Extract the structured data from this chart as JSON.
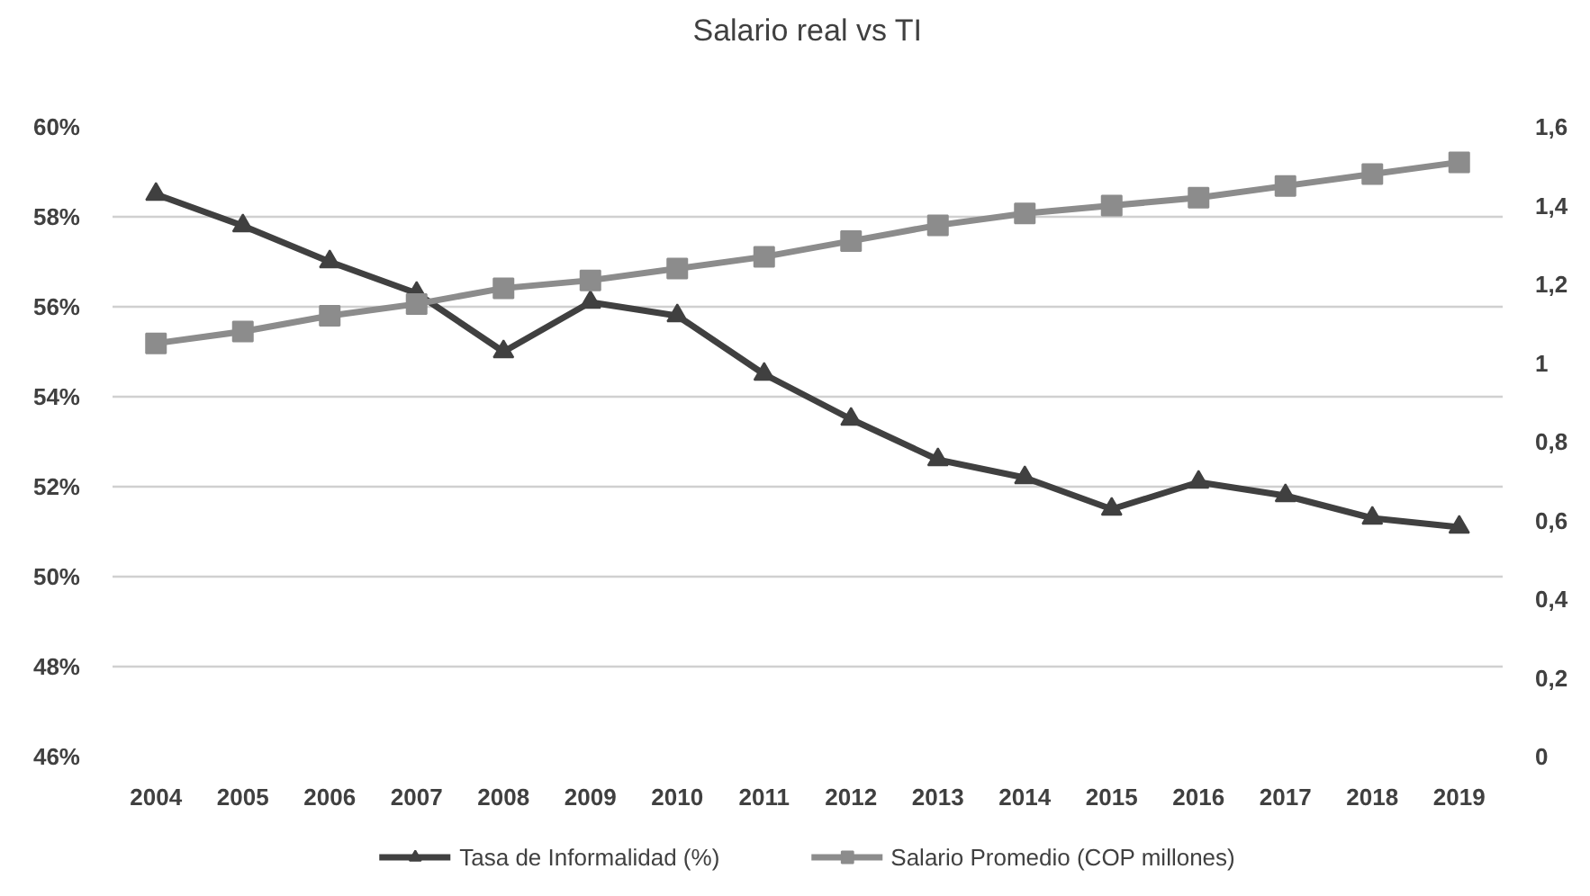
{
  "chart_data": {
    "type": "line",
    "title": "Salario real vs TI",
    "categories": [
      "2004",
      "2005",
      "2006",
      "2007",
      "2008",
      "2009",
      "2010",
      "2011",
      "2012",
      "2013",
      "2014",
      "2015",
      "2016",
      "2017",
      "2018",
      "2019"
    ],
    "series": [
      {
        "name": "Tasa de Informalidad (%)",
        "color": "#404040",
        "marker": "triangle",
        "values": [
          58.5,
          57.8,
          57.0,
          56.3,
          55.0,
          56.1,
          55.8,
          54.5,
          53.5,
          52.6,
          52.2,
          51.5,
          52.1,
          51.8,
          51.3,
          51.1
        ]
      },
      {
        "name": "Salario Promedio (COP millones)",
        "color": "#8c8c8c",
        "marker": "square",
        "axis": "y2",
        "values": [
          1.05,
          1.08,
          1.12,
          1.15,
          1.19,
          1.21,
          1.24,
          1.27,
          1.31,
          1.35,
          1.38,
          1.4,
          1.42,
          1.45,
          1.48,
          1.51
        ]
      }
    ],
    "ylim": [
      46,
      60
    ],
    "yticks": [
      {
        "value": 46,
        "label": "46%"
      },
      {
        "value": 48,
        "label": "48%"
      },
      {
        "value": 50,
        "label": "50%"
      },
      {
        "value": 52,
        "label": "52%"
      },
      {
        "value": 54,
        "label": "54%"
      },
      {
        "value": 56,
        "label": "56%"
      },
      {
        "value": 58,
        "label": "58%"
      },
      {
        "value": 60,
        "label": "60%"
      }
    ],
    "y2lim": [
      0,
      1.6
    ],
    "y2ticks": [
      0,
      {
        "value": 0.2,
        "label": "0,2"
      },
      {
        "value": 0.4,
        "label": "0,4"
      },
      {
        "value": 0.6,
        "label": "0,6"
      },
      {
        "value": 0.8,
        "label": "0,8"
      },
      1,
      {
        "value": 1.2,
        "label": "1,2"
      },
      {
        "value": 1.4,
        "label": "1,4"
      },
      {
        "value": 1.6,
        "label": "1,6"
      }
    ],
    "grid": "y",
    "legend": "bottom",
    "line_style": "solid"
  }
}
